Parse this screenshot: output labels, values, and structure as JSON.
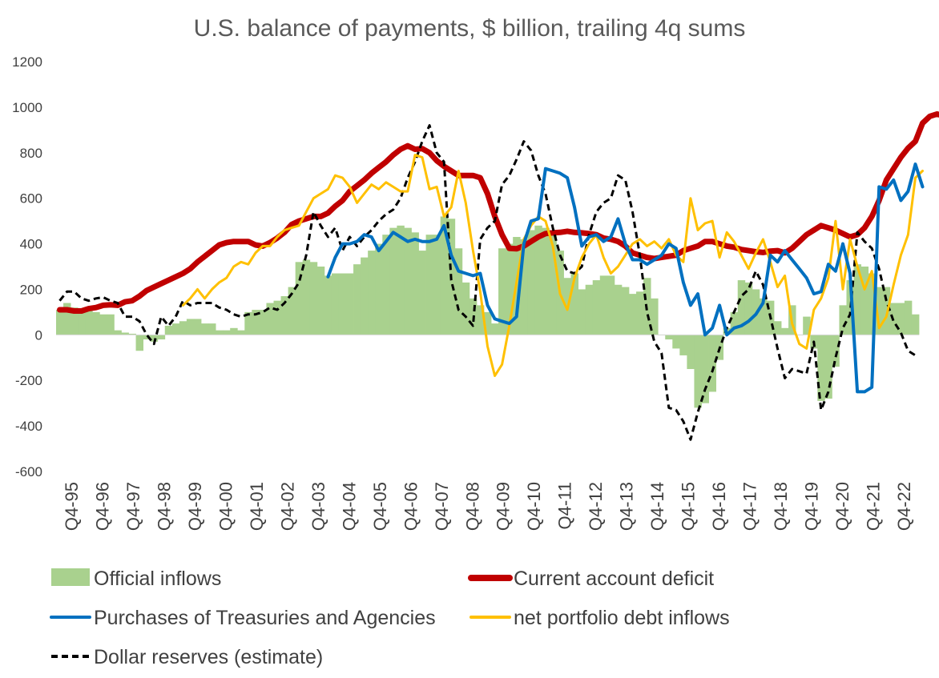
{
  "chart_data": {
    "type": "line",
    "title": "U.S. balance of payments, $ billion, trailing 4q sums",
    "ylim": [
      -600,
      1200
    ],
    "yticks": [
      1200,
      1000,
      800,
      600,
      400,
      200,
      0,
      -200,
      -400,
      -600
    ],
    "x_labels": [
      "Q4-95",
      "Q4-96",
      "Q4-97",
      "Q4-98",
      "Q4-99",
      "Q4-00",
      "Q4-01",
      "Q4-02",
      "Q4-03",
      "Q4-04",
      "Q4-05",
      "Q4-06",
      "Q4-07",
      "Q4-08",
      "Q4-09",
      "Q4-10",
      "Q4-11",
      "Q4-12",
      "Q4-13",
      "Q4-14",
      "Q4-15",
      "Q4-16",
      "Q4-17",
      "Q4-18",
      "Q4-19",
      "Q4-20",
      "Q4-21",
      "Q4-22"
    ],
    "grid": false,
    "legend_position": "bottom",
    "series": [
      {
        "name": "Official inflows",
        "kind": "bar",
        "color": "#a9d18e",
        "values": [
          110,
          140,
          120,
          110,
          120,
          100,
          90,
          90,
          20,
          10,
          5,
          -70,
          -20,
          -30,
          -20,
          40,
          50,
          60,
          70,
          70,
          50,
          50,
          20,
          20,
          30,
          20,
          100,
          110,
          110,
          140,
          150,
          170,
          210,
          320,
          330,
          320,
          300,
          260,
          270,
          270,
          270,
          310,
          340,
          370,
          400,
          440,
          470,
          480,
          470,
          450,
          370,
          440,
          440,
          520,
          510,
          380,
          230,
          160,
          130,
          100,
          50,
          380,
          400,
          430,
          420,
          460,
          480,
          470,
          460,
          370,
          250,
          270,
          200,
          220,
          240,
          260,
          260,
          220,
          210,
          180,
          190,
          250,
          160,
          0,
          -20,
          -60,
          -90,
          -150,
          -320,
          -300,
          -250,
          -110,
          30,
          100,
          240,
          230,
          200,
          160,
          150,
          60,
          30,
          130,
          0,
          80,
          -60,
          -290,
          -280,
          -140,
          130,
          240,
          310,
          300,
          270,
          210,
          210,
          140,
          140,
          150,
          90
        ]
      },
      {
        "name": "Current account deficit",
        "kind": "line",
        "color": "#c00000",
        "values": [
          110,
          110,
          105,
          105,
          115,
          120,
          130,
          132,
          130,
          145,
          150,
          170,
          195,
          210,
          225,
          240,
          255,
          270,
          290,
          320,
          345,
          370,
          395,
          405,
          410,
          410,
          410,
          395,
          390,
          405,
          425,
          450,
          485,
          500,
          510,
          520,
          520,
          535,
          565,
          590,
          630,
          655,
          680,
          710,
          735,
          760,
          790,
          815,
          830,
          815,
          818,
          800,
          765,
          740,
          720,
          700,
          700,
          700,
          690,
          620,
          520,
          440,
          380,
          378,
          390,
          410,
          430,
          445,
          448,
          450,
          455,
          450,
          448,
          445,
          440,
          425,
          420,
          410,
          390,
          360,
          350,
          340,
          335,
          340,
          345,
          350,
          370,
          380,
          390,
          410,
          410,
          400,
          390,
          385,
          375,
          370,
          365,
          362,
          368,
          370,
          360,
          380,
          410,
          440,
          460,
          480,
          470,
          460,
          445,
          430,
          440,
          470,
          520,
          590,
          680,
          730,
          780,
          820,
          850,
          930,
          960,
          970,
          960,
          940
        ]
      },
      {
        "name": "Purchases of Treasuries and Agencies",
        "kind": "line",
        "color": "#0070c0",
        "values": [
          null,
          null,
          null,
          null,
          null,
          null,
          null,
          null,
          null,
          null,
          null,
          null,
          null,
          null,
          null,
          null,
          null,
          null,
          null,
          null,
          null,
          null,
          null,
          null,
          null,
          null,
          null,
          null,
          null,
          null,
          null,
          null,
          null,
          null,
          null,
          null,
          null,
          255,
          340,
          400,
          400,
          410,
          440,
          430,
          370,
          410,
          450,
          430,
          410,
          420,
          410,
          410,
          420,
          480,
          350,
          280,
          270,
          260,
          270,
          130,
          70,
          60,
          50,
          80,
          400,
          500,
          510,
          730,
          720,
          710,
          690,
          560,
          390,
          430,
          440,
          410,
          430,
          510,
          400,
          330,
          330,
          310,
          330,
          350,
          400,
          380,
          230,
          130,
          180,
          0,
          30,
          130,
          0,
          30,
          40,
          60,
          90,
          140,
          350,
          320,
          370,
          330,
          290,
          250,
          180,
          190,
          310,
          280,
          400,
          270,
          -250,
          -250,
          -230,
          650,
          640,
          680,
          590,
          630,
          750,
          650
        ]
      },
      {
        "name": "net portfolio debt inflows",
        "kind": "line",
        "color": "#ffc000",
        "values": [
          null,
          null,
          null,
          null,
          null,
          null,
          null,
          null,
          null,
          null,
          null,
          null,
          null,
          null,
          null,
          null,
          null,
          130,
          160,
          200,
          160,
          200,
          230,
          250,
          300,
          320,
          310,
          360,
          390,
          390,
          430,
          460,
          470,
          480,
          540,
          600,
          620,
          640,
          700,
          690,
          650,
          580,
          620,
          660,
          640,
          670,
          650,
          630,
          630,
          790,
          780,
          640,
          650,
          520,
          560,
          720,
          580,
          370,
          190,
          -50,
          -180,
          -130,
          40,
          230,
          420,
          480,
          520,
          500,
          390,
          180,
          110,
          250,
          340,
          400,
          440,
          340,
          270,
          300,
          350,
          400,
          420,
          390,
          410,
          380,
          420,
          350,
          320,
          600,
          460,
          490,
          500,
          340,
          450,
          410,
          350,
          290,
          360,
          420,
          320,
          210,
          260,
          50,
          -40,
          -60,
          110,
          160,
          250,
          500,
          200,
          420,
          300,
          200,
          280,
          30,
          80,
          220,
          350,
          440,
          690,
          720
        ]
      },
      {
        "name": "Dollar reserves (estimate)",
        "kind": "line",
        "color": "#000000",
        "dashed": true,
        "values": [
          150,
          190,
          190,
          160,
          150,
          160,
          165,
          150,
          140,
          80,
          80,
          60,
          0,
          -40,
          80,
          40,
          80,
          150,
          130,
          140,
          140,
          140,
          120,
          110,
          90,
          80,
          90,
          90,
          100,
          120,
          110,
          140,
          180,
          230,
          350,
          540,
          480,
          430,
          470,
          370,
          430,
          390,
          430,
          460,
          500,
          530,
          550,
          600,
          690,
          760,
          850,
          920,
          800,
          760,
          240,
          110,
          80,
          40,
          420,
          470,
          500,
          660,
          700,
          770,
          850,
          810,
          700,
          620,
          470,
          350,
          280,
          270,
          300,
          440,
          540,
          580,
          600,
          700,
          680,
          540,
          350,
          100,
          -30,
          -80,
          -320,
          -330,
          -380,
          -460,
          -340,
          -240,
          -160,
          -60,
          30,
          100,
          170,
          200,
          280,
          220,
          80,
          -60,
          -190,
          -150,
          -160,
          -170,
          -30,
          -330,
          -250,
          -100,
          30,
          90,
          450,
          410,
          380,
          290,
          150,
          60,
          10,
          -70,
          -90
        ]
      }
    ]
  }
}
